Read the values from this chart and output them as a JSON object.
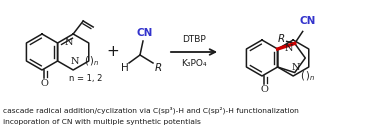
{
  "bg_color": "#ffffff",
  "text_color_black": "#1a1a1a",
  "text_color_blue": "#3333cc",
  "text_color_red": "#cc0000",
  "caption_line1": "cascade radical addition/cyclization via C(sp³)-H and C(sp²)-H functionalization",
  "caption_line2": "incoporation of CN with multiple synthetic potentials",
  "reagents_top": "DTBP",
  "reagents_bottom": "K₃PO₄",
  "fig_width": 3.78,
  "fig_height": 1.27,
  "dpi": 100
}
